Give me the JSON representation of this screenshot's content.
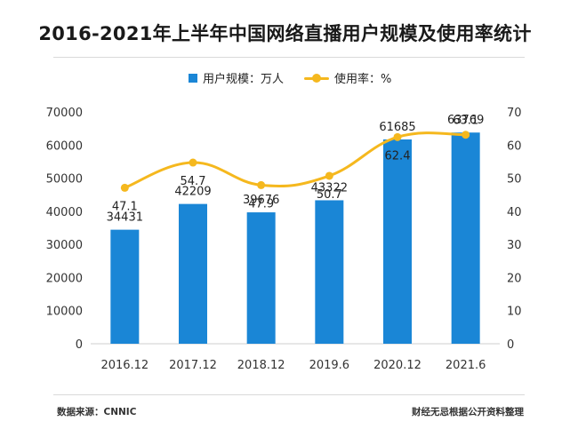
{
  "header": {
    "title": "2016-2021年上半年中国网络直播用户规模及使用率统计"
  },
  "footer": {
    "source": "数据来源：CNNIC",
    "credit": "财经无忌根据公开资料整理"
  },
  "colors": {
    "bar": "#1a86d6",
    "line": "#f5b81e",
    "axis": "#cfcfcf"
  },
  "chart_data": {
    "type": "bar",
    "categories": [
      "2016.12",
      "2017.12",
      "2018.12",
      "2019.6",
      "2020.12",
      "2021.6"
    ],
    "series": [
      {
        "name": "用户规模：万人",
        "type": "bar",
        "axis": "left",
        "values": [
          34431,
          42209,
          39676,
          43322,
          61685,
          63769
        ],
        "labels": [
          "34431",
          "42209",
          "39676",
          "43322",
          "61685",
          "63769"
        ]
      },
      {
        "name": "使用率：%",
        "type": "line",
        "axis": "right",
        "values": [
          47.1,
          54.7,
          47.9,
          50.7,
          62.4,
          63.1
        ],
        "labels": [
          "47.1",
          "54.7",
          "47.9",
          "50.7",
          "62.4",
          "63.1"
        ]
      }
    ],
    "y_left": {
      "min": 0,
      "max": 70000,
      "ticks": [
        "0",
        "10000",
        "20000",
        "30000",
        "40000",
        "50000",
        "60000",
        "70000"
      ]
    },
    "y_right": {
      "min": 0,
      "max": 70,
      "ticks": [
        "0",
        "10",
        "20",
        "30",
        "40",
        "50",
        "60",
        "70"
      ]
    },
    "legend": "top-center",
    "grid": false
  }
}
